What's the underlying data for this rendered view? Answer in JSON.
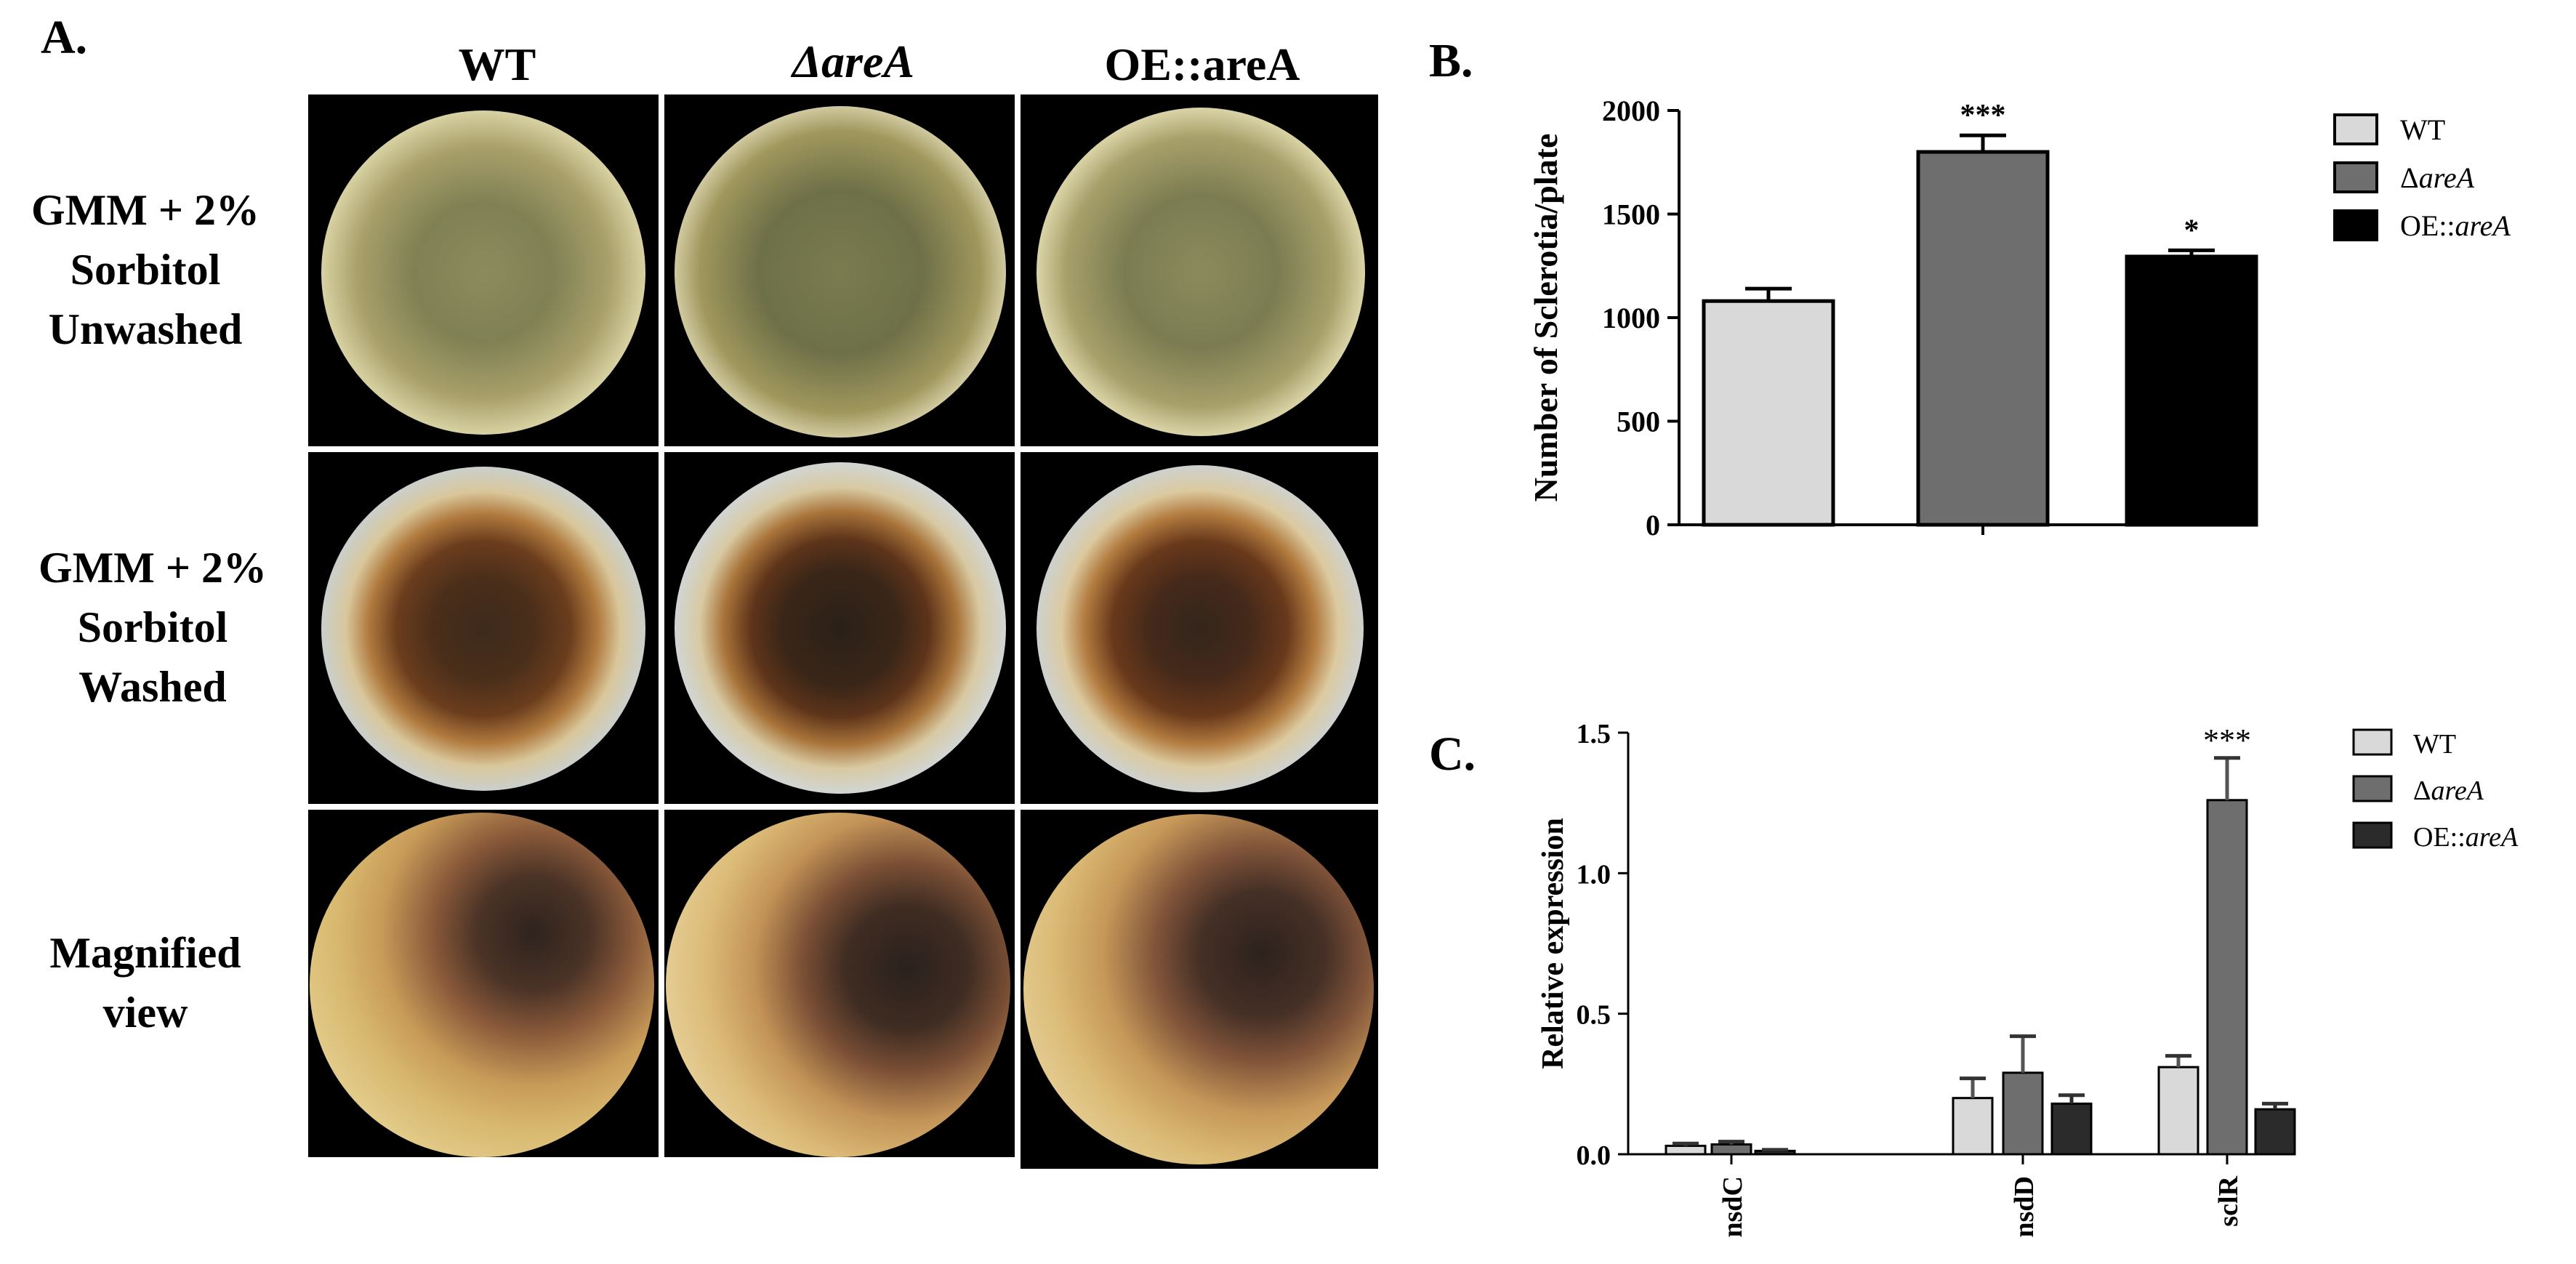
{
  "panel_a": {
    "letter": "A.",
    "columns": [
      "WT",
      "ΔareA",
      "OE::areA"
    ],
    "rows": [
      {
        "lines": [
          "GMM + 2%",
          "Sorbitol",
          "Unwashed"
        ]
      },
      {
        "lines": [
          "GMM + 2%",
          "Sorbitol",
          "Washed"
        ]
      },
      {
        "lines": [
          "Magnified",
          "view"
        ]
      }
    ]
  },
  "panel_b": {
    "letter": "B."
  },
  "panel_c": {
    "letter": "C."
  },
  "colors": {
    "wt": "#d9d9d9",
    "delta": "#6e6e6e",
    "oe": "#000000",
    "oe_c": "#2b2b2b"
  },
  "chart_data": [
    {
      "type": "bar",
      "categories": [
        "WT",
        "ΔareA",
        "OE::areA"
      ],
      "values": [
        1080,
        1800,
        1295
      ],
      "errors": [
        60,
        80,
        30
      ],
      "significance": [
        "",
        "***",
        "*"
      ],
      "ylabel": "Number of Sclerotia/plate",
      "xlabel": "",
      "ylim": [
        0,
        2000
      ],
      "yticks": [
        0,
        500,
        1000,
        1500,
        2000
      ],
      "legend": {
        "position": "right",
        "entries": [
          {
            "label": "WT",
            "prefix": "WT",
            "italic": ""
          },
          {
            "label": "ΔareA",
            "prefix": "Δ",
            "italic": "areA"
          },
          {
            "label": "OE::areA",
            "prefix": "OE::",
            "italic": "areA"
          }
        ]
      }
    },
    {
      "type": "bar",
      "categories": [
        "nsdC",
        "nsdD",
        "sclR"
      ],
      "series": [
        {
          "name": "WT",
          "values": [
            0.03,
            0.2,
            0.31
          ],
          "errors": [
            0.008,
            0.07,
            0.04
          ]
        },
        {
          "name": "ΔareA",
          "values": [
            0.035,
            0.29,
            1.26
          ],
          "errors": [
            0.01,
            0.13,
            0.15
          ]
        },
        {
          "name": "OE::areA",
          "values": [
            0.012,
            0.18,
            0.16
          ],
          "errors": [
            0.004,
            0.03,
            0.02
          ]
        }
      ],
      "significance": [
        {
          "category": "sclR",
          "series": "ΔareA",
          "label": "***"
        }
      ],
      "ylabel": "Relative expression",
      "xlabel": "",
      "ylim": [
        0,
        1.5
      ],
      "yticks": [
        "0.0",
        "0.5",
        "1.0",
        "1.5"
      ],
      "legend": {
        "position": "right",
        "entries": [
          {
            "label": "WT",
            "prefix": "WT",
            "italic": ""
          },
          {
            "label": "ΔareA",
            "prefix": "Δ",
            "italic": "areA"
          },
          {
            "label": "OE::areA",
            "prefix": "OE::",
            "italic": "areA"
          }
        ]
      }
    }
  ]
}
